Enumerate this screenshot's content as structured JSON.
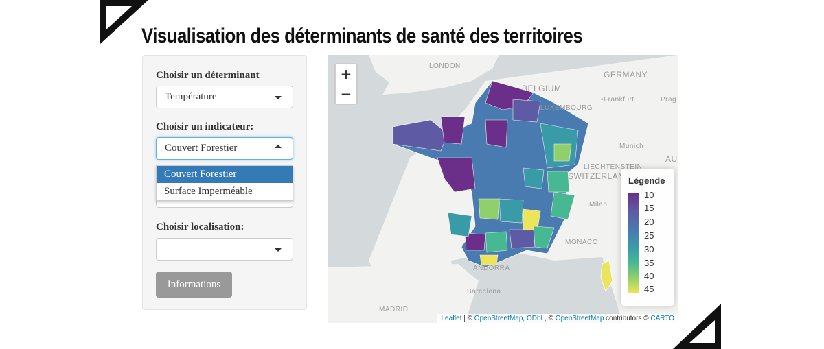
{
  "page": {
    "title": "Visualisation des déterminants de santé des territoires"
  },
  "sidebar": {
    "determinant_label": "Choisir un déterminant",
    "determinant_value": "Température",
    "indicator_label": "Choisir un indicateur:",
    "indicator_value": "Couvert Forestier",
    "indicator_options": [
      "Couvert Forestier",
      "Surface Imperméable"
    ],
    "localisation_label": "Choisir localisation:",
    "localisation_value": "",
    "info_button": "Informations"
  },
  "map": {
    "zoom_in": "+",
    "zoom_out": "−",
    "place_labels": [
      "LONDON",
      "BELGIUM",
      "GERMANY",
      "•Frankfurt",
      "Prag",
      "LUXEMBOURG",
      "Munich",
      "LIECHTENSTEIN",
      "SWITZERLAND",
      "AU",
      "Milan",
      "MONACO",
      "ANDORRA",
      "Barcelona",
      "MADRID"
    ],
    "legend": {
      "title": "Légende",
      "ticks": [
        "10",
        "15",
        "20",
        "25",
        "30",
        "35",
        "40",
        "45"
      ]
    },
    "attribution": {
      "leaflet": "Leaflet",
      "sep1": " | © ",
      "osm1": "OpenStreetMap",
      "sep2": ", ",
      "odbl": "ODbL",
      "sep3": ", © ",
      "osm2": "OpenStreetMap",
      "sep4": " contributors © ",
      "carto": "CARTO"
    }
  },
  "colors": {
    "dark_purple": "#6b2f8a",
    "purple": "#5e5aa3",
    "blue": "#4a7bb0",
    "teal": "#3a9ba8",
    "green": "#48b893",
    "light_green": "#8fd06a",
    "yellow": "#ece45a",
    "selected_option": "#337ab7"
  }
}
